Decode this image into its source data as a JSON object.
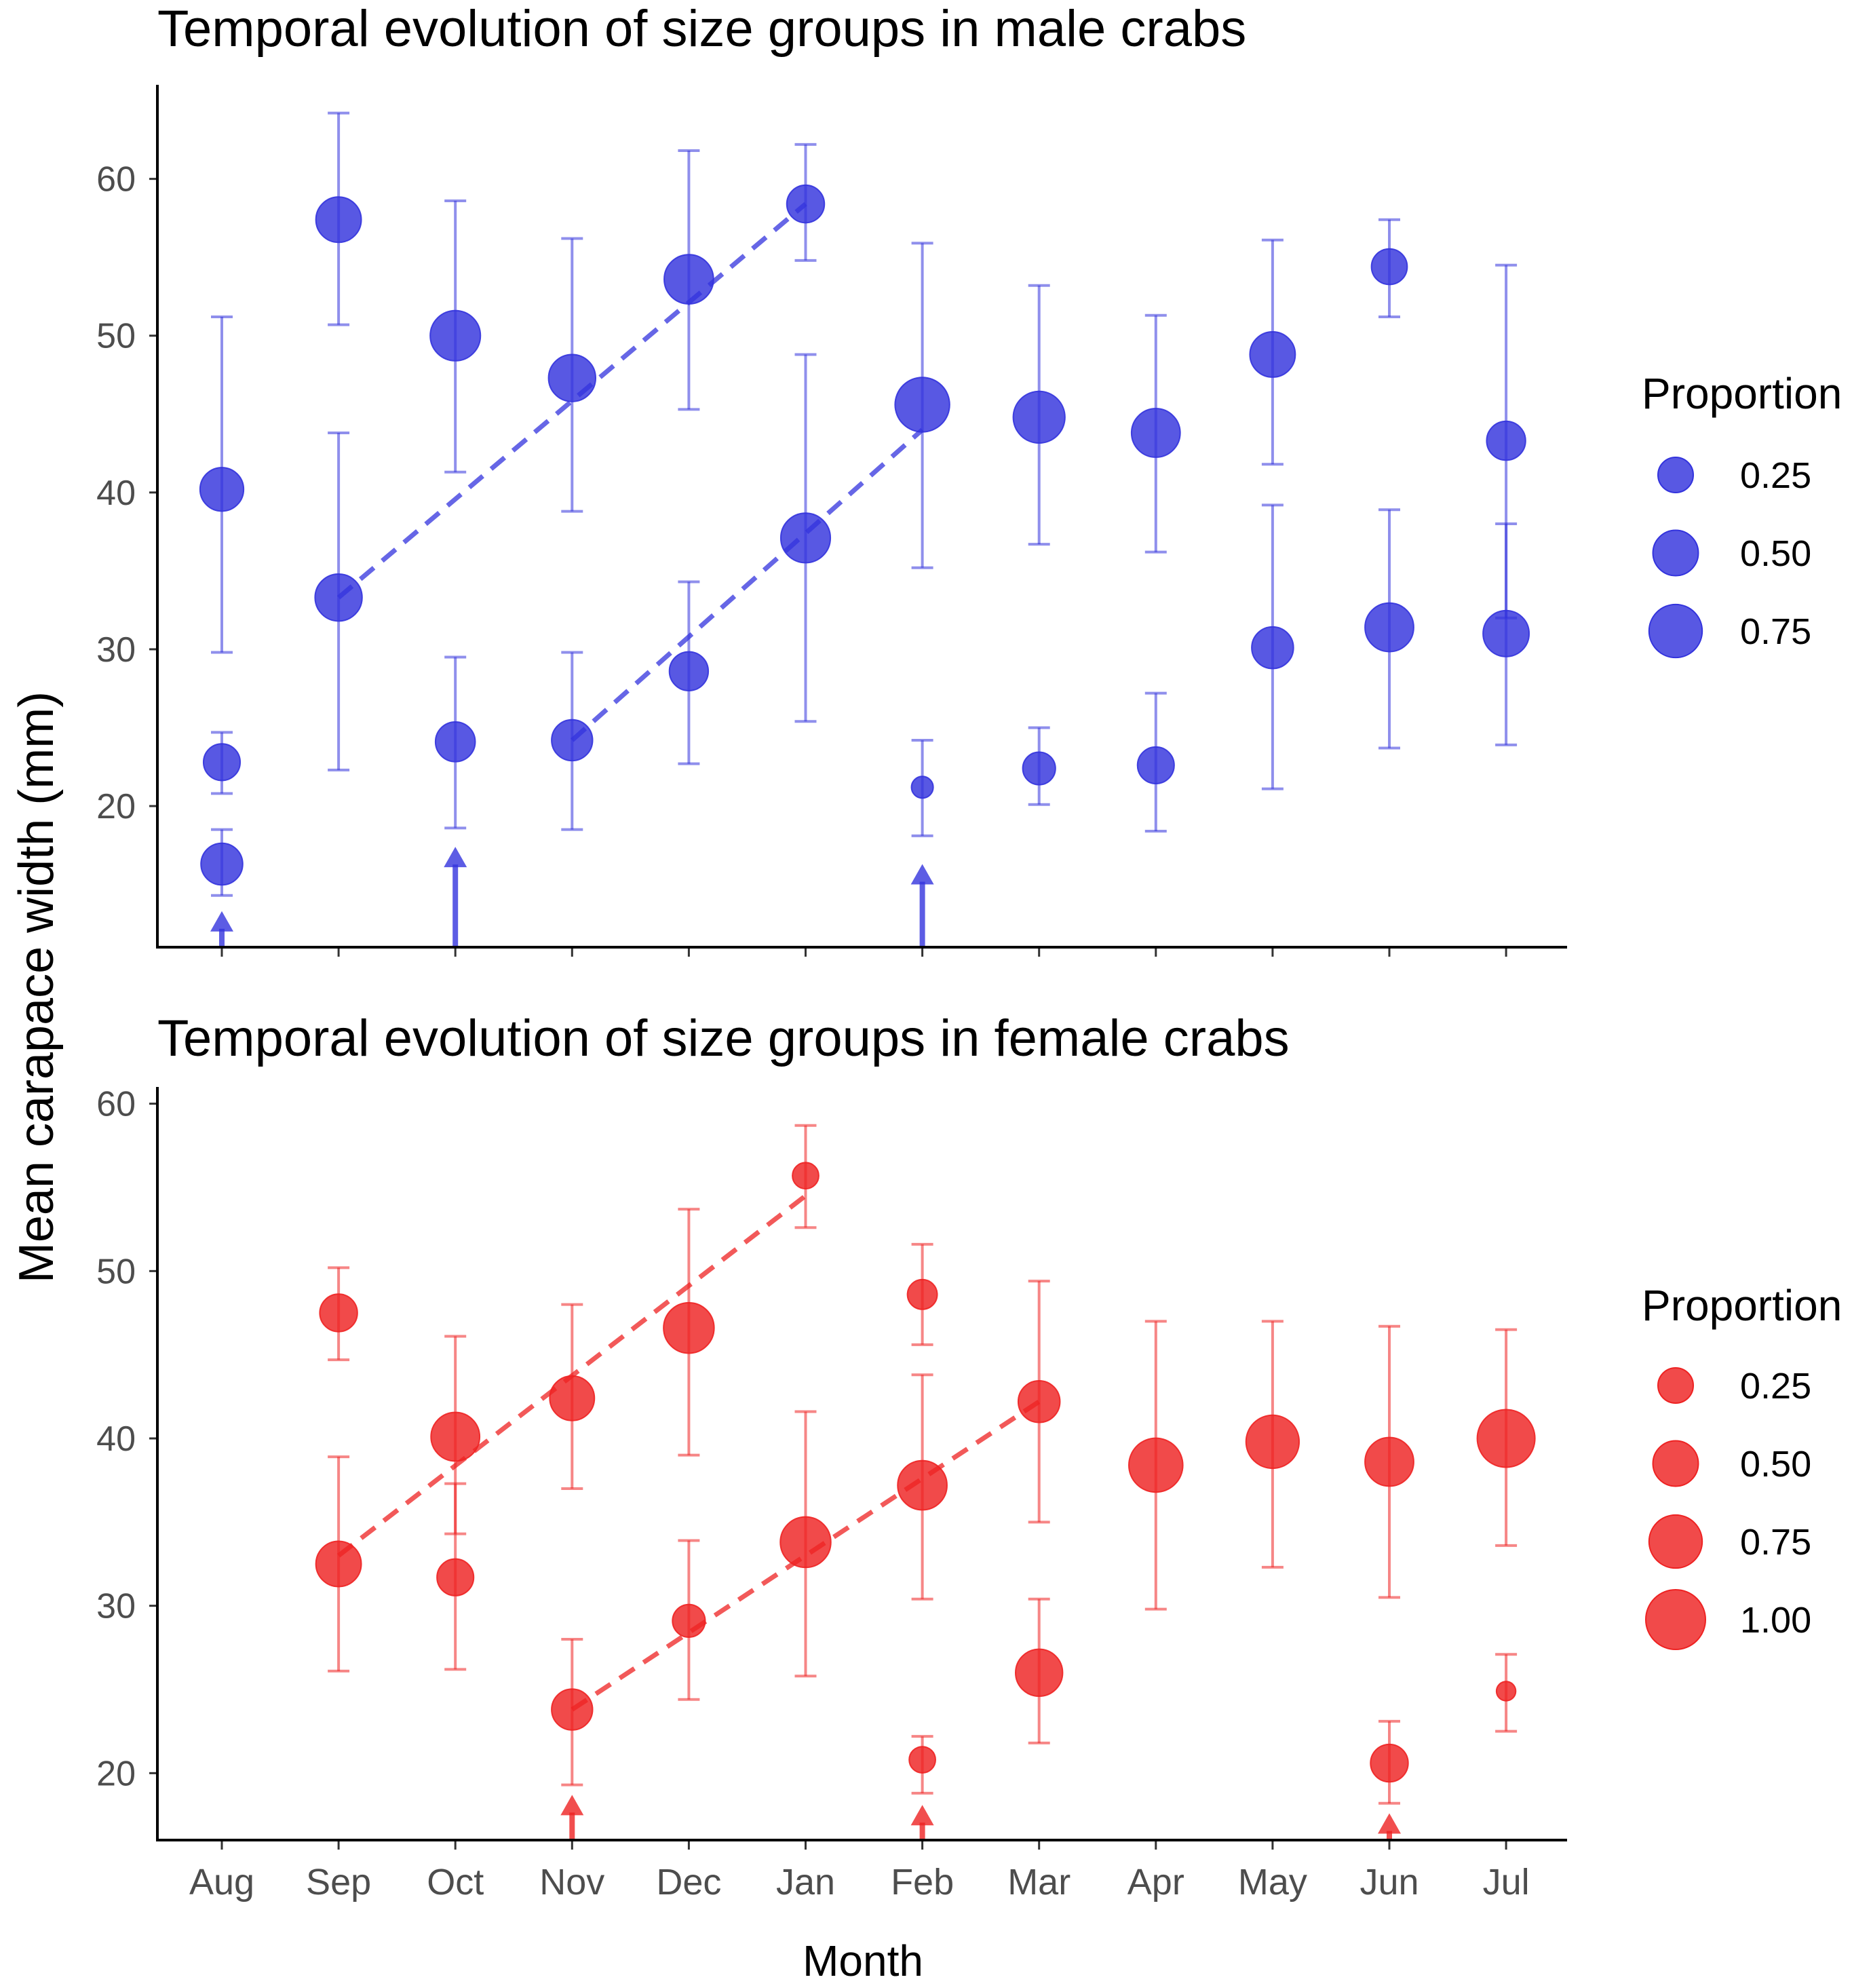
{
  "figure": {
    "ylabel": "Mean carapace width (mm)",
    "xlabel": "Month",
    "months": [
      "Aug",
      "Sep",
      "Oct",
      "Nov",
      "Dec",
      "Jan",
      "Feb",
      "Mar",
      "Apr",
      "May",
      "Jun",
      "Jul"
    ]
  },
  "chart_data": [
    {
      "type": "scatter",
      "title": "Temporal evolution of size groups in male crabs",
      "xlabel": "Month",
      "ylabel": "Mean carapace width (mm)",
      "categories": [
        "Aug",
        "Sep",
        "Oct",
        "Nov",
        "Dec",
        "Jan",
        "Feb",
        "Mar",
        "Apr",
        "May",
        "Jun",
        "Jul"
      ],
      "ylim": [
        11,
        66
      ],
      "yticks": [
        20,
        30,
        40,
        50,
        60
      ],
      "color": "#3333dd",
      "legend": {
        "title": "Proportion",
        "entries": [
          0.25,
          0.5,
          0.75
        ],
        "labels": [
          "0.25",
          "0.50",
          "0.75"
        ],
        "position": "right"
      },
      "points": [
        {
          "month": "Aug",
          "mean": 40.2,
          "low": 29.8,
          "high": 51.2,
          "proportion": 0.45
        },
        {
          "month": "Aug",
          "mean": 22.8,
          "low": 20.8,
          "high": 24.7,
          "proportion": 0.28
        },
        {
          "month": "Aug",
          "mean": 16.3,
          "low": 14.3,
          "high": 18.5,
          "proportion": 0.4
        },
        {
          "month": "Sep",
          "mean": 57.4,
          "low": 50.7,
          "high": 64.2,
          "proportion": 0.5
        },
        {
          "month": "Sep",
          "mean": 33.3,
          "low": 22.3,
          "high": 43.8,
          "proportion": 0.55
        },
        {
          "month": "Oct",
          "mean": 50.0,
          "low": 41.3,
          "high": 58.6,
          "proportion": 0.65
        },
        {
          "month": "Oct",
          "mean": 24.1,
          "low": 18.6,
          "high": 29.5,
          "proportion": 0.35
        },
        {
          "month": "Nov",
          "mean": 47.3,
          "low": 38.8,
          "high": 56.2,
          "proportion": 0.55
        },
        {
          "month": "Nov",
          "mean": 24.2,
          "low": 18.5,
          "high": 29.8,
          "proportion": 0.38
        },
        {
          "month": "Dec",
          "mean": 53.6,
          "low": 45.3,
          "high": 61.8,
          "proportion": 0.62
        },
        {
          "month": "Dec",
          "mean": 28.6,
          "low": 22.7,
          "high": 34.3,
          "proportion": 0.33
        },
        {
          "month": "Jan",
          "mean": 58.4,
          "low": 54.8,
          "high": 62.2,
          "proportion": 0.3
        },
        {
          "month": "Jan",
          "mean": 37.1,
          "low": 25.4,
          "high": 48.8,
          "proportion": 0.63
        },
        {
          "month": "Feb",
          "mean": 45.6,
          "low": 35.2,
          "high": 55.9,
          "proportion": 0.8
        },
        {
          "month": "Feb",
          "mean": 21.2,
          "low": 18.1,
          "high": 24.2,
          "proportion": 0.05
        },
        {
          "month": "Mar",
          "mean": 44.8,
          "low": 36.7,
          "high": 53.2,
          "proportion": 0.7
        },
        {
          "month": "Mar",
          "mean": 22.4,
          "low": 20.1,
          "high": 25.0,
          "proportion": 0.2
        },
        {
          "month": "Apr",
          "mean": 43.8,
          "low": 36.2,
          "high": 51.3,
          "proportion": 0.6
        },
        {
          "month": "Apr",
          "mean": 22.6,
          "low": 18.4,
          "high": 27.2,
          "proportion": 0.28
        },
        {
          "month": "May",
          "mean": 48.8,
          "low": 41.8,
          "high": 56.1,
          "proportion": 0.5
        },
        {
          "month": "May",
          "mean": 30.1,
          "low": 21.1,
          "high": 39.2,
          "proportion": 0.4
        },
        {
          "month": "Jun",
          "mean": 54.4,
          "low": 51.2,
          "high": 57.4,
          "proportion": 0.26
        },
        {
          "month": "Jun",
          "mean": 31.4,
          "low": 23.7,
          "high": 38.9,
          "proportion": 0.6
        },
        {
          "month": "Jul",
          "mean": 43.3,
          "low": 32.0,
          "high": 54.5,
          "proportion": 0.33
        },
        {
          "month": "Jul",
          "mean": 31.0,
          "low": 23.9,
          "high": 38.0,
          "proportion": 0.52
        }
      ],
      "cohort_lines": [
        {
          "from": {
            "month": "Sep",
            "y": 33.3
          },
          "to": {
            "month": "Jan",
            "y": 58.4
          }
        },
        {
          "from": {
            "month": "Nov",
            "y": 24.2
          },
          "to": {
            "month": "Feb",
            "y": 44.0
          }
        }
      ],
      "arrows": [
        {
          "month": "Aug",
          "tip": 13.3
        },
        {
          "month": "Oct",
          "tip": 17.4
        },
        {
          "month": "Feb",
          "tip": 16.3
        }
      ]
    },
    {
      "type": "scatter",
      "title": "Temporal evolution of size groups in female crabs",
      "xlabel": "Month",
      "ylabel": "Mean carapace width (mm)",
      "categories": [
        "Aug",
        "Sep",
        "Oct",
        "Nov",
        "Dec",
        "Jan",
        "Feb",
        "Mar",
        "Apr",
        "May",
        "Jun",
        "Jul"
      ],
      "ylim": [
        16,
        61
      ],
      "yticks": [
        20,
        30,
        40,
        50,
        60
      ],
      "color": "#ee2222",
      "legend": {
        "title": "Proportion",
        "entries": [
          0.25,
          0.5,
          0.75,
          1.0
        ],
        "labels": [
          "0.25",
          "0.50",
          "0.75",
          "1.00"
        ],
        "position": "right"
      },
      "points": [
        {
          "month": "Sep",
          "mean": 47.5,
          "low": 44.7,
          "high": 50.2,
          "proportion": 0.3
        },
        {
          "month": "Sep",
          "mean": 32.5,
          "low": 26.1,
          "high": 38.9,
          "proportion": 0.5
        },
        {
          "month": "Oct",
          "mean": 40.1,
          "low": 34.3,
          "high": 46.1,
          "proportion": 0.6
        },
        {
          "month": "Oct",
          "mean": 31.7,
          "low": 26.2,
          "high": 37.3,
          "proportion": 0.28
        },
        {
          "month": "Nov",
          "mean": 42.4,
          "low": 37.0,
          "high": 48.0,
          "proportion": 0.48
        },
        {
          "month": "Nov",
          "mean": 23.8,
          "low": 19.3,
          "high": 28.0,
          "proportion": 0.38
        },
        {
          "month": "Dec",
          "mean": 46.6,
          "low": 39.0,
          "high": 53.7,
          "proportion": 0.66
        },
        {
          "month": "Dec",
          "mean": 29.1,
          "low": 24.4,
          "high": 33.9,
          "proportion": 0.2
        },
        {
          "month": "Jan",
          "mean": 55.7,
          "low": 52.6,
          "high": 58.7,
          "proportion": 0.1
        },
        {
          "month": "Jan",
          "mean": 33.8,
          "low": 25.8,
          "high": 41.6,
          "proportion": 0.66
        },
        {
          "month": "Feb",
          "mean": 48.6,
          "low": 45.6,
          "high": 51.6,
          "proportion": 0.15
        },
        {
          "month": "Feb",
          "mean": 37.2,
          "low": 30.4,
          "high": 43.8,
          "proportion": 0.62
        },
        {
          "month": "Feb",
          "mean": 20.8,
          "low": 18.8,
          "high": 22.2,
          "proportion": 0.1
        },
        {
          "month": "Mar",
          "mean": 42.2,
          "low": 35.0,
          "high": 49.4,
          "proportion": 0.4
        },
        {
          "month": "Mar",
          "mean": 26.0,
          "low": 21.8,
          "high": 30.4,
          "proportion": 0.55
        },
        {
          "month": "Apr",
          "mean": 38.4,
          "low": 29.8,
          "high": 47.0,
          "proportion": 0.78
        },
        {
          "month": "May",
          "mean": 39.8,
          "low": 32.3,
          "high": 47.0,
          "proportion": 0.75
        },
        {
          "month": "Jun",
          "mean": 38.6,
          "low": 30.5,
          "high": 46.7,
          "proportion": 0.6
        },
        {
          "month": "Jun",
          "mean": 20.6,
          "low": 18.2,
          "high": 23.1,
          "proportion": 0.3
        },
        {
          "month": "Jul",
          "mean": 40.0,
          "low": 33.6,
          "high": 46.5,
          "proportion": 0.92
        },
        {
          "month": "Jul",
          "mean": 24.9,
          "low": 22.5,
          "high": 27.1,
          "proportion": 0.03
        }
      ],
      "cohort_lines": [
        {
          "from": {
            "month": "Sep",
            "y": 33.0
          },
          "to": {
            "month": "Jan",
            "y": 54.5
          }
        },
        {
          "from": {
            "month": "Nov",
            "y": 23.8
          },
          "to": {
            "month": "Mar",
            "y": 42.2
          }
        }
      ],
      "arrows": [
        {
          "month": "Nov",
          "tip": 18.7
        },
        {
          "month": "Feb",
          "tip": 18.1
        },
        {
          "month": "Jun",
          "tip": 17.6
        }
      ]
    }
  ]
}
